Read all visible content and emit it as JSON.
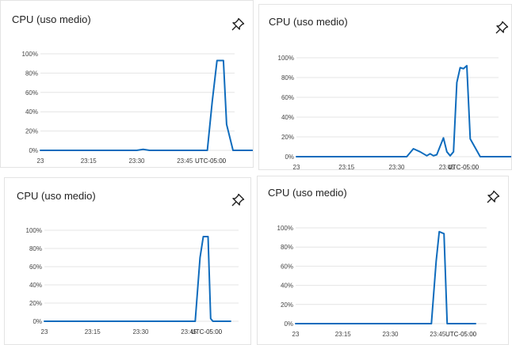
{
  "accent": "#0f6cbd",
  "tiles": [
    {
      "title": "CPU (uso medio)",
      "pin_icon": "pin-icon",
      "chart_data": {
        "type": "line",
        "y_ticks": [
          "100%",
          "80%",
          "60%",
          "40%",
          "20%",
          "0%"
        ],
        "x_ticks": [
          "23",
          "23:15",
          "23:30",
          "23:45"
        ],
        "timezone": "UTC-05:00",
        "ylim": [
          0,
          100
        ],
        "x_range_minutes": [
          0,
          60
        ],
        "series": [
          {
            "x": [
              0,
              12,
              20,
              30,
              32,
              34,
              40,
              50,
              52,
              53.5,
              55,
              56,
              57,
              58,
              60,
              63,
              66
            ],
            "y": [
              0,
              0,
              0,
              0,
              1,
              0,
              0,
              0,
              0,
              50,
              93,
              93,
              93,
              27,
              0,
              0,
              0
            ]
          }
        ]
      }
    },
    {
      "title": "CPU (uso medio)",
      "pin_icon": "pin-icon",
      "chart_data": {
        "type": "line",
        "y_ticks": [
          "100%",
          "80%",
          "60%",
          "40%",
          "20%",
          "0%"
        ],
        "x_ticks": [
          "23",
          "23:15",
          "23:30",
          "23:45"
        ],
        "timezone": "UTC-05:00",
        "ylim": [
          0,
          100
        ],
        "x_range_minutes": [
          0,
          60
        ],
        "series": [
          {
            "x": [
              0,
              10,
              20,
              30,
              33,
              35,
              37,
              39,
              40,
              41,
              42,
              44,
              45,
              46,
              47,
              48,
              49,
              50,
              51,
              52,
              55,
              60,
              66
            ],
            "y": [
              0,
              0,
              0,
              0,
              0,
              8,
              5,
              1,
              3,
              1,
              2,
              19,
              5,
              1,
              5,
              75,
              90,
              89,
              92,
              18,
              0,
              0,
              0
            ]
          }
        ]
      }
    },
    {
      "title": "CPU (uso medio)",
      "pin_icon": "pin-icon",
      "chart_data": {
        "type": "line",
        "y_ticks": [
          "100%",
          "80%",
          "60%",
          "40%",
          "20%",
          "0%"
        ],
        "x_ticks": [
          "23",
          "23:15",
          "23:30",
          "23:45"
        ],
        "timezone": "UTC-05:00",
        "ylim": [
          0,
          100
        ],
        "x_range_minutes": [
          0,
          60
        ],
        "series": [
          {
            "x": [
              0,
              15,
              30,
              47,
              48.5,
              49.5,
              51,
              51.8,
              52.5,
              55,
              58
            ],
            "y": [
              0,
              0,
              0,
              0,
              70,
              93,
              93,
              3,
              0,
              0,
              0
            ]
          }
        ]
      }
    },
    {
      "title": "CPU (uso medio)",
      "pin_icon": "pin-icon",
      "chart_data": {
        "type": "line",
        "y_ticks": [
          "100%",
          "80%",
          "60%",
          "40%",
          "20%",
          "0%"
        ],
        "x_ticks": [
          "23",
          "23:15",
          "23:30",
          "23:45"
        ],
        "timezone": "UTC-05:00",
        "ylim": [
          0,
          100
        ],
        "x_range_minutes": [
          0,
          60
        ],
        "series": [
          {
            "x": [
              0,
              15,
              30,
              43,
              44.5,
              45.5,
              47,
              48,
              49,
              52,
              57
            ],
            "y": [
              0,
              0,
              0,
              0,
              65,
              96,
              94,
              0,
              0,
              0,
              0
            ]
          }
        ]
      }
    }
  ]
}
